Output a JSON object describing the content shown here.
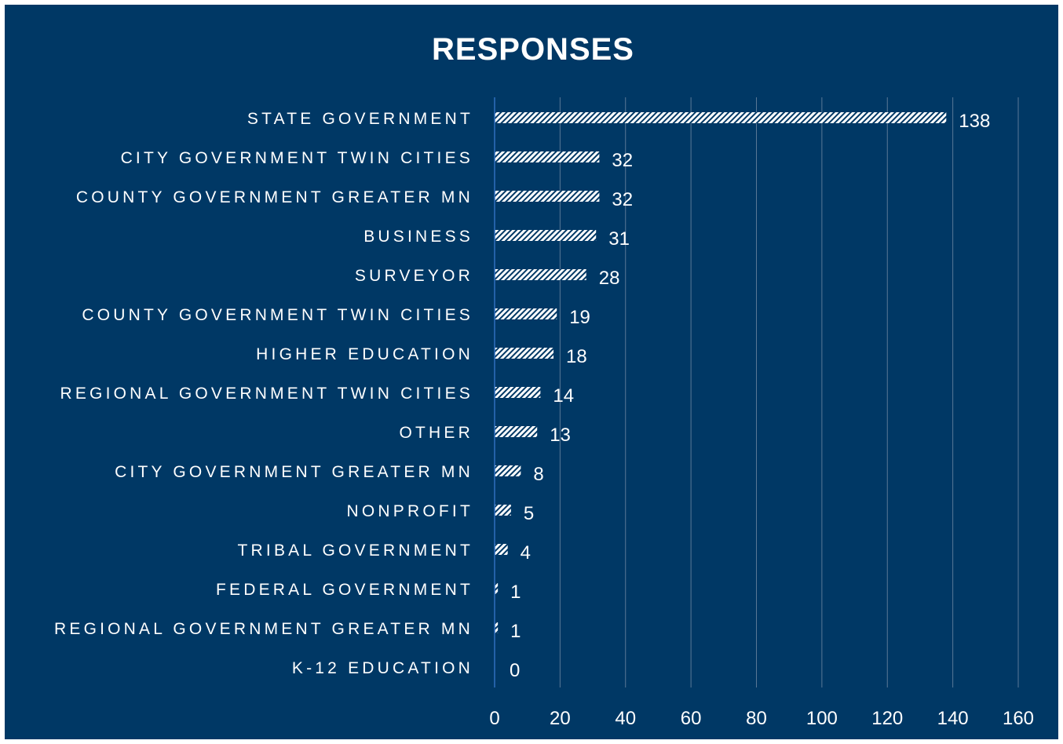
{
  "chart_data": {
    "type": "bar",
    "orientation": "horizontal",
    "title": "RESPONSES",
    "xlabel": "",
    "ylabel": "",
    "xlim": [
      0,
      160
    ],
    "x_ticks": [
      0,
      20,
      40,
      60,
      80,
      100,
      120,
      140,
      160
    ],
    "grid": true,
    "legend": "none",
    "data_labels": true,
    "categories": [
      "STATE GOVERNMENT",
      "CITY GOVERNMENT TWIN CITIES",
      "COUNTY GOVERNMENT GREATER MN",
      "BUSINESS",
      "SURVEYOR",
      "COUNTY GOVERNMENT TWIN CITIES",
      "HIGHER EDUCATION",
      "REGIONAL GOVERNMENT TWIN CITIES",
      "OTHER",
      "CITY GOVERNMENT GREATER MN",
      "NONPROFIT",
      "TRIBAL GOVERNMENT",
      "FEDERAL GOVERNMENT",
      "REGIONAL GOVERNMENT GREATER MN",
      "K-12 EDUCATION"
    ],
    "values": [
      138,
      32,
      32,
      31,
      28,
      19,
      18,
      14,
      13,
      8,
      5,
      4,
      1,
      1,
      0
    ],
    "colors": {
      "background": "#003865",
      "bar_fill": "#ffffff",
      "bar_pattern": "diagonal-hatch",
      "text": "#ffffff",
      "gridline": "#5a7896",
      "axis": "#2f6fbf"
    }
  }
}
